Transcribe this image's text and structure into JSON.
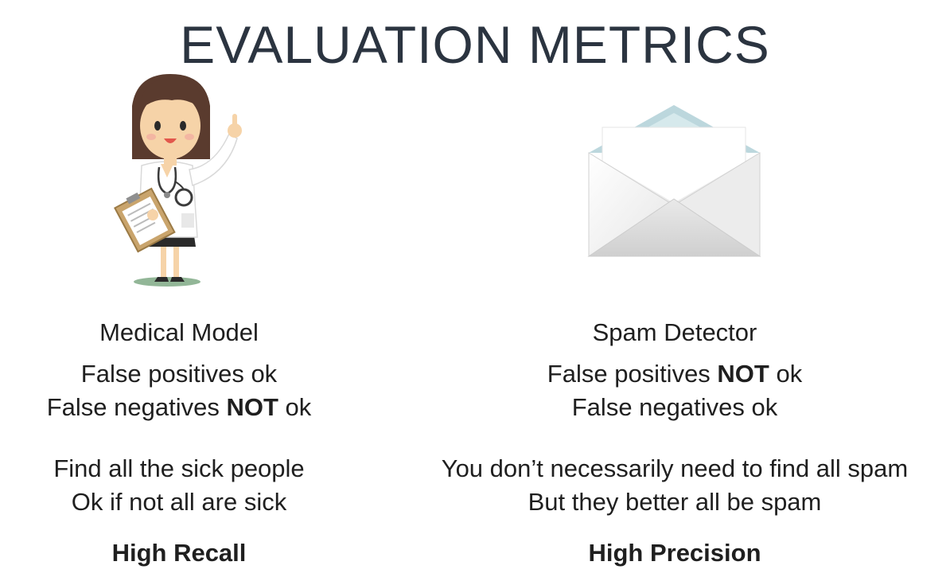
{
  "title": "EVALUATION METRICS",
  "left": {
    "illustration": "doctor-illustration",
    "heading": "Medical Model",
    "fp": {
      "pre": "False positives ",
      "strong": "",
      "post": "ok"
    },
    "fn": {
      "pre": "False negatives ",
      "strong": "NOT",
      "post": " ok"
    },
    "desc1": "Find all the sick people",
    "desc2": "Ok if not all are sick",
    "verdict": "High Recall"
  },
  "right": {
    "illustration": "envelope-illustration",
    "heading": "Spam Detector",
    "fp": {
      "pre": "False positives ",
      "strong": "NOT",
      "post": " ok"
    },
    "fn": {
      "pre": "False negatives ",
      "strong": "",
      "post": "ok"
    },
    "desc1": "You don’t necessarily need to find all spam",
    "desc2": "But they better all be spam",
    "verdict": "High Precision"
  },
  "colors": {
    "title": "#2b3440",
    "text": "#1f1f1f"
  }
}
